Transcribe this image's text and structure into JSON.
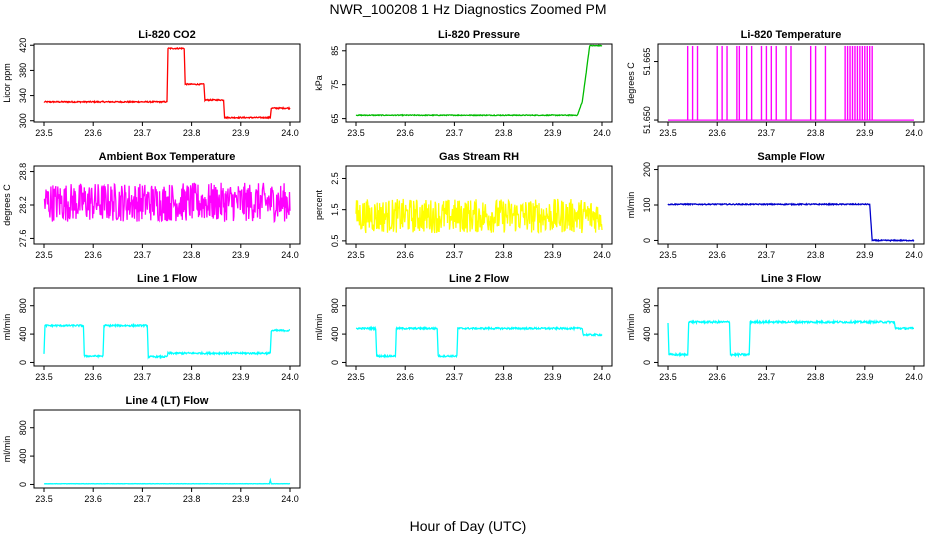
{
  "figure": {
    "title": "NWR_100208  1 Hz Diagnostics Zoomed PM",
    "xlabel": "Hour of Day (UTC)"
  },
  "chart_data": [
    {
      "type": "line",
      "title": "Li-820 CO2",
      "ylabel": "Licor ppm",
      "color": "#ff0000",
      "xlim": [
        23.5,
        24.0
      ],
      "xticks": [
        "23.5",
        "23.6",
        "23.7",
        "23.8",
        "23.9",
        "24.0"
      ],
      "ylim": [
        298,
        422
      ],
      "yticks": [
        300,
        340,
        380,
        420
      ],
      "series": [
        {
          "x": [
            23.5,
            23.75,
            23.752,
            23.785,
            23.787,
            23.825,
            23.827,
            23.865,
            23.867,
            23.96,
            23.962,
            24.0
          ],
          "y": [
            330,
            330,
            415,
            415,
            358,
            358,
            333,
            333,
            305,
            305,
            320,
            320
          ],
          "noise": 1
        }
      ]
    },
    {
      "type": "line",
      "title": "Li-820 Pressure",
      "ylabel": "kPa",
      "color": "#00bb00",
      "xlim": [
        23.5,
        24.0
      ],
      "xticks": [
        "23.5",
        "23.6",
        "23.7",
        "23.8",
        "23.9",
        "24.0"
      ],
      "ylim": [
        64,
        87
      ],
      "yticks": [
        65,
        75,
        85
      ],
      "series": [
        {
          "x": [
            23.5,
            23.95,
            23.96,
            23.975,
            24.0
          ],
          "y": [
            66,
            66,
            70,
            86.5,
            86.5
          ],
          "noise": 0.12
        }
      ]
    },
    {
      "type": "line",
      "title": "Li-820 Temperature",
      "ylabel": "degrees C",
      "color": "#ff00ff",
      "xlim": [
        23.5,
        24.0
      ],
      "xticks": [
        "23.5",
        "23.6",
        "23.7",
        "23.8",
        "23.9",
        "24.0"
      ],
      "ylim": [
        51.6495,
        51.6695
      ],
      "yticks": [
        51.65,
        51.665
      ],
      "series": [
        {
          "x": [
            23.5,
            24.0
          ],
          "y": [
            51.65,
            51.65
          ],
          "noise": 0,
          "spikes": [
            23.54,
            23.55,
            23.56,
            23.6,
            23.61,
            23.62,
            23.64,
            23.645,
            23.66,
            23.67,
            23.69,
            23.7,
            23.71,
            23.72,
            23.74,
            23.75,
            23.79,
            23.8,
            23.82,
            23.86,
            23.865,
            23.87,
            23.875,
            23.88,
            23.885,
            23.89,
            23.895,
            23.9,
            23.905,
            23.91,
            23.915
          ],
          "spike_to": 51.669
        }
      ]
    },
    {
      "type": "line",
      "title": "Ambient Box Temperature",
      "ylabel": "degrees C",
      "color": "#ff00ff",
      "xlim": [
        23.5,
        24.0
      ],
      "xticks": [
        "23.5",
        "23.6",
        "23.7",
        "23.8",
        "23.9",
        "24.0"
      ],
      "ylim": [
        27.5,
        28.9
      ],
      "yticks": [
        27.6,
        28.2,
        28.8
      ],
      "series": [
        {
          "x": [
            23.5,
            24.0
          ],
          "y": [
            28.25,
            28.25
          ],
          "noise": 0.35
        }
      ]
    },
    {
      "type": "line",
      "title": "Gas Stream RH",
      "ylabel": "percent",
      "color": "#ffff00",
      "xlim": [
        23.5,
        24.0
      ],
      "xticks": [
        "23.5",
        "23.6",
        "23.7",
        "23.8",
        "23.9",
        "24.0"
      ],
      "ylim": [
        0.4,
        2.9
      ],
      "yticks": [
        0.5,
        1.5,
        2.5
      ],
      "series": [
        {
          "x": [
            23.5,
            24.0
          ],
          "y": [
            1.3,
            1.3
          ],
          "noise": 0.55
        }
      ]
    },
    {
      "type": "line",
      "title": "Sample Flow",
      "ylabel": "ml/min",
      "color": "#0000cc",
      "xlim": [
        23.5,
        24.0
      ],
      "xticks": [
        "23.5",
        "23.6",
        "23.7",
        "23.8",
        "23.9",
        "24.0"
      ],
      "ylim": [
        -10,
        210
      ],
      "yticks": [
        0,
        100,
        200
      ],
      "series": [
        {
          "x": [
            23.5,
            23.91,
            23.915,
            24.0
          ],
          "y": [
            102,
            102,
            0,
            0
          ],
          "noise": 1.5
        }
      ]
    },
    {
      "type": "line",
      "title": "Line 1 Flow",
      "ylabel": "ml/min",
      "color": "#00ffff",
      "xlim": [
        23.5,
        24.0
      ],
      "xticks": [
        "23.5",
        "23.6",
        "23.7",
        "23.8",
        "23.9",
        "24.0"
      ],
      "ylim": [
        -50,
        1050
      ],
      "yticks": [
        0,
        400,
        800
      ],
      "series": [
        {
          "x": [
            23.5,
            23.502,
            23.58,
            23.582,
            23.62,
            23.622,
            23.71,
            23.712,
            23.75,
            23.752,
            23.96,
            23.962,
            24.0
          ],
          "y": [
            130,
            520,
            520,
            90,
            90,
            520,
            520,
            80,
            80,
            130,
            130,
            450,
            450
          ],
          "noise": 12
        }
      ]
    },
    {
      "type": "line",
      "title": "Line 2 Flow",
      "ylabel": "ml/min",
      "color": "#00ffff",
      "xlim": [
        23.5,
        24.0
      ],
      "xticks": [
        "23.5",
        "23.6",
        "23.7",
        "23.8",
        "23.9",
        "24.0"
      ],
      "ylim": [
        -50,
        1050
      ],
      "yticks": [
        0,
        400,
        800
      ],
      "series": [
        {
          "x": [
            23.5,
            23.54,
            23.542,
            23.58,
            23.582,
            23.665,
            23.667,
            23.705,
            23.707,
            23.96,
            23.962,
            24.0
          ],
          "y": [
            480,
            480,
            90,
            90,
            480,
            480,
            90,
            90,
            480,
            480,
            390,
            390
          ],
          "noise": 12
        }
      ]
    },
    {
      "type": "line",
      "title": "Line 3 Flow",
      "ylabel": "ml/min",
      "color": "#00ffff",
      "xlim": [
        23.5,
        24.0
      ],
      "xticks": [
        "23.5",
        "23.6",
        "23.7",
        "23.8",
        "23.9",
        "24.0"
      ],
      "ylim": [
        -50,
        1050
      ],
      "yticks": [
        0,
        400,
        800
      ],
      "series": [
        {
          "x": [
            23.5,
            23.502,
            23.54,
            23.542,
            23.625,
            23.627,
            23.665,
            23.667,
            23.96,
            23.962,
            24.0
          ],
          "y": [
            560,
            110,
            110,
            570,
            570,
            110,
            110,
            570,
            570,
            480,
            480
          ],
          "noise": 14
        }
      ]
    },
    {
      "type": "line",
      "title": "Line 4 (LT) Flow",
      "ylabel": "ml/min",
      "color": "#00ffff",
      "xlim": [
        23.5,
        24.0
      ],
      "xticks": [
        "23.5",
        "23.6",
        "23.7",
        "23.8",
        "23.9",
        "24.0"
      ],
      "ylim": [
        -50,
        1050
      ],
      "yticks": [
        0,
        400,
        800
      ],
      "series": [
        {
          "x": [
            23.5,
            23.958,
            23.96,
            23.962,
            24.0
          ],
          "y": [
            10,
            10,
            60,
            10,
            10
          ],
          "noise": 2
        }
      ]
    }
  ]
}
